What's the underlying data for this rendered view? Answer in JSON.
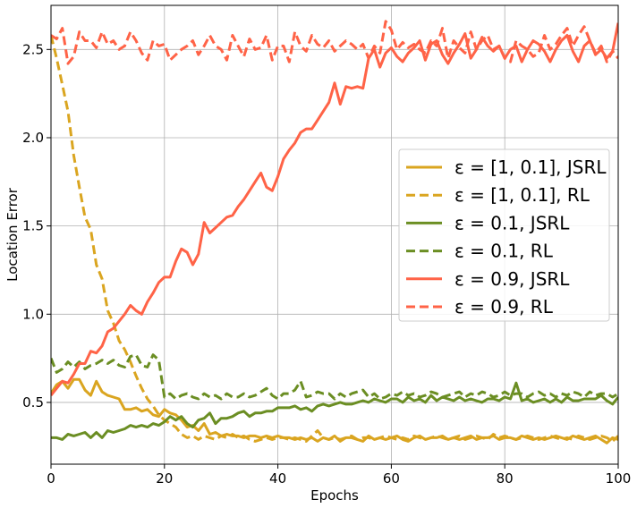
{
  "chart_data": {
    "type": "line",
    "xlabel": "Epochs",
    "ylabel": "Location Error",
    "xlim": [
      0,
      100
    ],
    "ylim": [
      0.15,
      2.75
    ],
    "xticks": [
      0,
      20,
      40,
      60,
      80,
      100
    ],
    "yticks": [
      0.5,
      1.0,
      1.5,
      2.0,
      2.5
    ],
    "grid": true,
    "legend_position": "center-right",
    "x": [
      0,
      1,
      2,
      3,
      4,
      5,
      6,
      7,
      8,
      9,
      10,
      11,
      12,
      13,
      14,
      15,
      16,
      17,
      18,
      19,
      20,
      21,
      22,
      23,
      24,
      25,
      26,
      27,
      28,
      29,
      30,
      31,
      32,
      33,
      34,
      35,
      36,
      37,
      38,
      39,
      40,
      41,
      42,
      43,
      44,
      45,
      46,
      47,
      48,
      49,
      50,
      51,
      52,
      53,
      54,
      55,
      56,
      57,
      58,
      59,
      60,
      61,
      62,
      63,
      64,
      65,
      66,
      67,
      68,
      69,
      70,
      71,
      72,
      73,
      74,
      75,
      76,
      77,
      78,
      79,
      80,
      81,
      82,
      83,
      84,
      85,
      86,
      87,
      88,
      89,
      90,
      91,
      92,
      93,
      94,
      95,
      96,
      97,
      98,
      99,
      100
    ],
    "series": [
      {
        "name": "ε = [1, 0.1], JSRL",
        "color": "#DAA520",
        "dash": "solid",
        "values": [
          0.55,
          0.6,
          0.62,
          0.58,
          0.63,
          0.63,
          0.57,
          0.54,
          0.62,
          0.56,
          0.54,
          0.53,
          0.52,
          0.46,
          0.46,
          0.47,
          0.45,
          0.46,
          0.43,
          0.42,
          0.46,
          0.44,
          0.43,
          0.4,
          0.36,
          0.37,
          0.34,
          0.38,
          0.32,
          0.33,
          0.31,
          0.32,
          0.31,
          0.31,
          0.3,
          0.31,
          0.31,
          0.3,
          0.31,
          0.3,
          0.31,
          0.3,
          0.3,
          0.29,
          0.3,
          0.29,
          0.3,
          0.28,
          0.3,
          0.29,
          0.31,
          0.28,
          0.3,
          0.3,
          0.29,
          0.28,
          0.31,
          0.29,
          0.3,
          0.29,
          0.3,
          0.31,
          0.29,
          0.28,
          0.3,
          0.31,
          0.29,
          0.3,
          0.3,
          0.31,
          0.29,
          0.3,
          0.29,
          0.3,
          0.31,
          0.29,
          0.3,
          0.3,
          0.31,
          0.29,
          0.3,
          0.3,
          0.29,
          0.31,
          0.3,
          0.29,
          0.3,
          0.29,
          0.3,
          0.31,
          0.3,
          0.29,
          0.31,
          0.3,
          0.29,
          0.3,
          0.31,
          0.29,
          0.27,
          0.3,
          0.29
        ]
      },
      {
        "name": "ε = [1, 0.1], RL",
        "color": "#DAA520",
        "dash": "dashed",
        "values": [
          2.58,
          2.45,
          2.3,
          2.15,
          1.9,
          1.72,
          1.55,
          1.48,
          1.28,
          1.2,
          1.02,
          0.95,
          0.85,
          0.8,
          0.73,
          0.65,
          0.58,
          0.52,
          0.48,
          0.43,
          0.4,
          0.38,
          0.36,
          0.32,
          0.3,
          0.31,
          0.29,
          0.31,
          0.3,
          0.29,
          0.31,
          0.3,
          0.32,
          0.3,
          0.31,
          0.29,
          0.28,
          0.29,
          0.3,
          0.29,
          0.3,
          0.3,
          0.29,
          0.3,
          0.29,
          0.28,
          0.31,
          0.34,
          0.3,
          0.29,
          0.3,
          0.29,
          0.3,
          0.31,
          0.29,
          0.3,
          0.3,
          0.29,
          0.3,
          0.31,
          0.3,
          0.29,
          0.3,
          0.29,
          0.31,
          0.3,
          0.29,
          0.3,
          0.31,
          0.3,
          0.29,
          0.3,
          0.31,
          0.29,
          0.3,
          0.31,
          0.3,
          0.29,
          0.32,
          0.3,
          0.31,
          0.3,
          0.29,
          0.3,
          0.31,
          0.3,
          0.29,
          0.3,
          0.31,
          0.3,
          0.29,
          0.3,
          0.29,
          0.31,
          0.3,
          0.29,
          0.3,
          0.31,
          0.3,
          0.28,
          0.31
        ]
      },
      {
        "name": "ε = 0.1, JSRL",
        "color": "#6B8E23",
        "dash": "solid",
        "values": [
          0.3,
          0.3,
          0.29,
          0.32,
          0.31,
          0.32,
          0.33,
          0.3,
          0.33,
          0.3,
          0.34,
          0.33,
          0.34,
          0.35,
          0.37,
          0.36,
          0.37,
          0.36,
          0.38,
          0.37,
          0.39,
          0.42,
          0.4,
          0.42,
          0.38,
          0.36,
          0.4,
          0.41,
          0.44,
          0.38,
          0.41,
          0.41,
          0.42,
          0.44,
          0.45,
          0.42,
          0.44,
          0.44,
          0.45,
          0.45,
          0.47,
          0.47,
          0.47,
          0.48,
          0.46,
          0.47,
          0.45,
          0.48,
          0.49,
          0.48,
          0.49,
          0.5,
          0.49,
          0.49,
          0.5,
          0.51,
          0.5,
          0.52,
          0.51,
          0.5,
          0.52,
          0.52,
          0.5,
          0.53,
          0.51,
          0.52,
          0.5,
          0.54,
          0.51,
          0.53,
          0.52,
          0.51,
          0.53,
          0.51,
          0.52,
          0.51,
          0.5,
          0.52,
          0.52,
          0.51,
          0.53,
          0.52,
          0.61,
          0.51,
          0.52,
          0.5,
          0.51,
          0.52,
          0.5,
          0.52,
          0.5,
          0.53,
          0.51,
          0.51,
          0.52,
          0.52,
          0.52,
          0.54,
          0.51,
          0.49,
          0.53
        ]
      },
      {
        "name": "ε = 0.1, RL",
        "color": "#6B8E23",
        "dash": "dashed",
        "values": [
          0.75,
          0.67,
          0.69,
          0.73,
          0.7,
          0.73,
          0.69,
          0.71,
          0.72,
          0.74,
          0.72,
          0.74,
          0.71,
          0.7,
          0.76,
          0.77,
          0.71,
          0.7,
          0.77,
          0.74,
          0.53,
          0.55,
          0.52,
          0.54,
          0.55,
          0.53,
          0.52,
          0.55,
          0.53,
          0.54,
          0.52,
          0.55,
          0.53,
          0.53,
          0.55,
          0.53,
          0.54,
          0.56,
          0.58,
          0.54,
          0.52,
          0.55,
          0.55,
          0.57,
          0.62,
          0.53,
          0.54,
          0.56,
          0.55,
          0.55,
          0.52,
          0.55,
          0.53,
          0.55,
          0.56,
          0.57,
          0.53,
          0.55,
          0.52,
          0.53,
          0.55,
          0.54,
          0.56,
          0.54,
          0.55,
          0.53,
          0.54,
          0.56,
          0.55,
          0.53,
          0.54,
          0.55,
          0.56,
          0.53,
          0.55,
          0.54,
          0.56,
          0.55,
          0.53,
          0.54,
          0.56,
          0.54,
          0.55,
          0.55,
          0.53,
          0.55,
          0.56,
          0.54,
          0.55,
          0.53,
          0.55,
          0.54,
          0.56,
          0.55,
          0.53,
          0.56,
          0.54,
          0.55,
          0.55,
          0.53,
          0.55
        ]
      },
      {
        "name": "ε = 0.9, JSRL",
        "color": "#FF6347",
        "dash": "solid",
        "values": [
          0.54,
          0.58,
          0.62,
          0.61,
          0.66,
          0.72,
          0.72,
          0.79,
          0.78,
          0.82,
          0.9,
          0.92,
          0.96,
          1.0,
          1.05,
          1.02,
          1.0,
          1.07,
          1.12,
          1.18,
          1.21,
          1.21,
          1.3,
          1.37,
          1.35,
          1.28,
          1.34,
          1.52,
          1.46,
          1.49,
          1.52,
          1.55,
          1.56,
          1.61,
          1.65,
          1.7,
          1.75,
          1.8,
          1.72,
          1.7,
          1.78,
          1.88,
          1.93,
          1.97,
          2.03,
          2.05,
          2.05,
          2.1,
          2.15,
          2.2,
          2.31,
          2.19,
          2.29,
          2.28,
          2.29,
          2.28,
          2.45,
          2.5,
          2.4,
          2.48,
          2.51,
          2.46,
          2.43,
          2.48,
          2.51,
          2.55,
          2.44,
          2.53,
          2.55,
          2.47,
          2.42,
          2.48,
          2.53,
          2.59,
          2.45,
          2.5,
          2.57,
          2.52,
          2.49,
          2.52,
          2.45,
          2.5,
          2.52,
          2.43,
          2.5,
          2.55,
          2.53,
          2.49,
          2.43,
          2.5,
          2.55,
          2.58,
          2.49,
          2.43,
          2.52,
          2.55,
          2.47,
          2.5,
          2.45,
          2.49,
          2.65
        ]
      },
      {
        "name": "ε = 0.9, RL",
        "color": "#FF6347",
        "dash": "dashed",
        "values": [
          2.58,
          2.56,
          2.62,
          2.42,
          2.46,
          2.6,
          2.55,
          2.55,
          2.51,
          2.6,
          2.53,
          2.55,
          2.5,
          2.52,
          2.6,
          2.55,
          2.48,
          2.44,
          2.55,
          2.52,
          2.53,
          2.44,
          2.47,
          2.5,
          2.52,
          2.55,
          2.47,
          2.52,
          2.58,
          2.52,
          2.5,
          2.44,
          2.58,
          2.52,
          2.46,
          2.56,
          2.5,
          2.51,
          2.58,
          2.44,
          2.52,
          2.52,
          2.43,
          2.6,
          2.52,
          2.49,
          2.58,
          2.53,
          2.51,
          2.55,
          2.49,
          2.52,
          2.55,
          2.53,
          2.5,
          2.53,
          2.45,
          2.52,
          2.48,
          2.66,
          2.61,
          2.5,
          2.54,
          2.51,
          2.53,
          2.5,
          2.48,
          2.55,
          2.52,
          2.62,
          2.45,
          2.55,
          2.51,
          2.48,
          2.6,
          2.5,
          2.55,
          2.58,
          2.5,
          2.52,
          2.45,
          2.43,
          2.55,
          2.52,
          2.5,
          2.46,
          2.48,
          2.58,
          2.5,
          2.53,
          2.58,
          2.62,
          2.52,
          2.58,
          2.63,
          2.55,
          2.48,
          2.52,
          2.43,
          2.49,
          2.45
        ]
      }
    ]
  }
}
